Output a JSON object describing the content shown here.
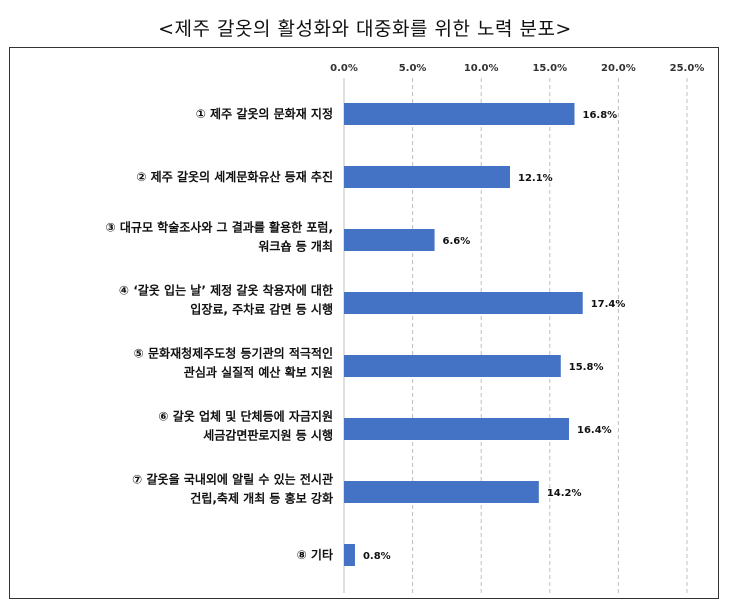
{
  "chart_data": {
    "type": "bar",
    "orientation": "horizontal",
    "title": "<제주 갈옷의 활성화와 대중화를 위한 노력 분포>",
    "categories": [
      [
        "① 제주 갈옷의 문화재 지정"
      ],
      [
        "② 제주 갈옷의 세계문화유산 등재 추진"
      ],
      [
        "③ 대규모 학술조사와 그 결과를 활용한 포럼,",
        "워크숍 등 개최"
      ],
      [
        "④ ‘갈옷 입는 날’ 제정 갈옷 착용자에 대한",
        "입장료, 주차료 감면 등 시행"
      ],
      [
        "⑤ 문화재청제주도청 등기관의 적극적인",
        "관심과 실질적 예산 확보 지원"
      ],
      [
        "⑥ 갈옷 업체 및 단체등에 자금지원",
        "세금감면판로지원 등 시행"
      ],
      [
        "⑦ 갈옷을 국내외에 알릴 수 있는 전시관",
        "건립,축제 개최 등 홍보 강화"
      ],
      [
        "⑧ 기타"
      ]
    ],
    "values": [
      16.8,
      12.1,
      6.6,
      17.4,
      15.8,
      16.4,
      14.2,
      0.8
    ],
    "data_labels": [
      "16.8%",
      "12.1%",
      "6.6%",
      "17.4%",
      "15.8%",
      "16.4%",
      "14.2%",
      "0.8%"
    ],
    "xlim": [
      0,
      25
    ],
    "x_ticks": [
      0,
      5,
      10,
      15,
      20,
      25
    ],
    "x_tick_labels": [
      "0.0%",
      "5.0%",
      "10.0%",
      "15.0%",
      "20.0%",
      "25.0%"
    ],
    "axis_position": "top",
    "grid": "vertical-dashed",
    "bar_color": "#4472C4",
    "grid_color": "#bfbfbf"
  }
}
